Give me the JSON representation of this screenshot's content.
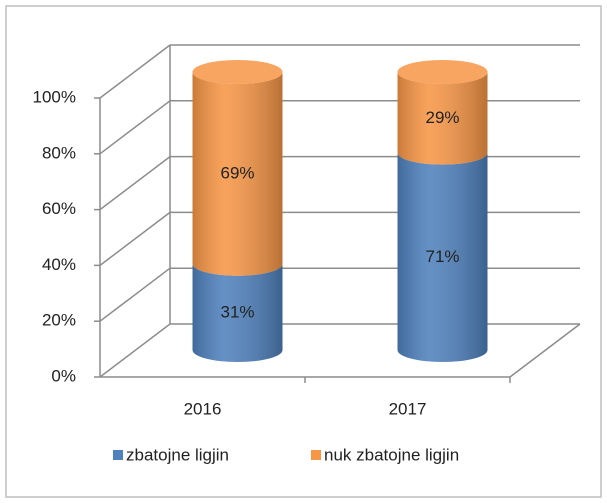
{
  "chart_data": {
    "type": "bar3d_cylinder_stacked",
    "categories": [
      "2016",
      "2017"
    ],
    "series": [
      {
        "name": "zbatojne ligjin",
        "color": "#4f81bd",
        "values": [
          31,
          71
        ],
        "value_labels": [
          "31%",
          "71%"
        ]
      },
      {
        "name": "nuk zbatojne ligjin",
        "color": "#f79646",
        "values": [
          69,
          29
        ],
        "value_labels": [
          "69%",
          "29%"
        ]
      }
    ],
    "ylim": [
      0,
      100
    ],
    "yticks": [
      {
        "value": 0,
        "label": "0%"
      },
      {
        "value": 20,
        "label": "20%"
      },
      {
        "value": 40,
        "label": "40%"
      },
      {
        "value": 60,
        "label": "60%"
      },
      {
        "value": 80,
        "label": "80%"
      },
      {
        "value": 100,
        "label": "100%"
      }
    ],
    "grid": true,
    "legend": "bottom"
  }
}
